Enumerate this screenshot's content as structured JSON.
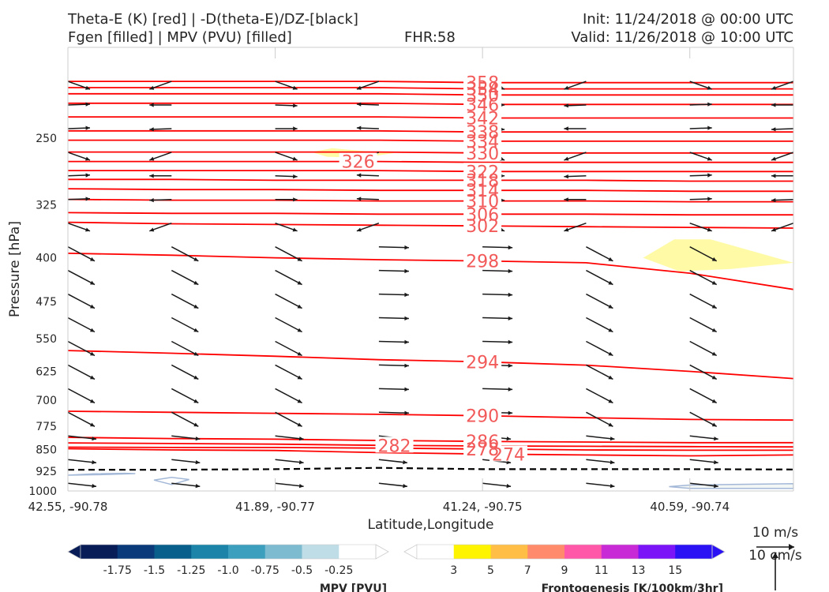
{
  "header": {
    "title_left_1": "Theta-E (K) [red] | -D(theta-E)/DZ-[black]",
    "title_left_2": "Fgen [filled] | MPV (PVU) [filled]",
    "fhr": "FHR:58",
    "init": "Init: 11/24/2018 @ 00:00 UTC",
    "valid": "Valid: 11/26/2018 @ 10:00 UTC"
  },
  "chart_data": {
    "type": "cross-section",
    "xlabel": "Latitude,Longitude",
    "ylabel": "Pressure [hPa]",
    "x_ticks": [
      "42.55, -90.78",
      "41.89, -90.77",
      "41.24, -90.75",
      "40.59, -90.74"
    ],
    "y_ticks": [
      250,
      325,
      400,
      475,
      550,
      625,
      700,
      775,
      850,
      925,
      1000
    ],
    "ylim": [
      1000,
      175
    ],
    "y_scale": "log-pressure",
    "theta_e_contours": [
      {
        "label": "274",
        "values": [
          847,
          851,
          853,
          860,
          865,
          868,
          871,
          868
        ]
      },
      {
        "label": "278",
        "values": [
          842,
          843,
          843,
          845,
          848,
          851,
          852,
          852
        ]
      },
      {
        "label": "282",
        "values": [
          828,
          830,
          832,
          836,
          838,
          839,
          840,
          841
        ]
      },
      {
        "label": "286",
        "values": [
          810,
          814,
          816,
          820,
          823,
          825,
          827,
          827
        ]
      },
      {
        "label": "290",
        "values": [
          731,
          734,
          737,
          740,
          744,
          750,
          755,
          757
        ]
      },
      {
        "label": "294",
        "values": [
          576,
          582,
          589,
          597,
          602,
          610,
          625,
          643
        ]
      },
      {
        "label": "298",
        "values": [
          393,
          396,
          400,
          403,
          405,
          408,
          425,
          453
        ]
      },
      {
        "label": "302",
        "values": [
          348,
          350,
          351,
          352,
          353,
          354,
          355,
          356
        ]
      },
      {
        "label": "306",
        "values": [
          335,
          336,
          336,
          337,
          337,
          337,
          338,
          338
        ]
      },
      {
        "label": "310",
        "values": [
          318,
          319,
          319,
          320,
          320,
          320,
          321,
          321
        ]
      },
      {
        "label": "314",
        "values": [
          305,
          306,
          306,
          307,
          307,
          307,
          308,
          308
        ]
      },
      {
        "label": "318",
        "values": [
          294,
          294,
          295,
          295,
          295,
          295,
          296,
          296
        ]
      },
      {
        "label": "322",
        "values": [
          284,
          284,
          284,
          284,
          285,
          285,
          285,
          285
        ]
      },
      {
        "label": "326",
        "values": [
          274,
          274,
          274,
          274,
          275,
          275,
          275,
          275
        ]
      },
      {
        "label": "330",
        "values": [
          264,
          264,
          264,
          264,
          265,
          265,
          265,
          265
        ]
      },
      {
        "label": "334",
        "values": [
          252,
          252,
          252,
          252,
          253,
          253,
          253,
          253
        ]
      },
      {
        "label": "338",
        "values": [
          243,
          243,
          243,
          243,
          244,
          244,
          244,
          244
        ]
      },
      {
        "label": "342",
        "values": [
          230,
          230,
          230,
          230,
          231,
          231,
          231,
          231
        ]
      },
      {
        "label": "346",
        "values": [
          218,
          218,
          218,
          218,
          219,
          219,
          219,
          219
        ]
      },
      {
        "label": "350",
        "values": [
          210,
          210,
          210,
          210,
          211,
          211,
          211,
          211
        ]
      },
      {
        "label": "354",
        "values": [
          205,
          205,
          205,
          205,
          206,
          206,
          206,
          206
        ]
      },
      {
        "label": "358",
        "values": [
          200,
          200,
          200,
          200,
          201,
          201,
          201,
          201
        ]
      }
    ],
    "stability_zero_line": {
      "style": "dashed",
      "color": "#000000",
      "values": [
        920,
        920,
        918,
        913,
        918,
        918,
        918,
        919
      ]
    },
    "fgen_fill": {
      "color": "#fffaa0"
    },
    "mpv_fill": {
      "color": "#bcd8e2"
    },
    "legends": [
      {
        "title": "MPV [PVU]",
        "tick_labels": [
          "-1.75",
          "-1.5",
          "-1.25",
          "-1.0",
          "-0.75",
          "-0.5",
          "-0.25"
        ],
        "colors": [
          "#081d58",
          "#0b3a7a",
          "#085f8c",
          "#1c84a8",
          "#3d9fbe",
          "#7dbbd1",
          "#bfdde6",
          "#ffffff"
        ]
      },
      {
        "title": "Frontogenesis [K/100km/3hr]",
        "tick_labels": [
          "3",
          "5",
          "7",
          "9",
          "11",
          "13",
          "15"
        ],
        "colors": [
          "#ffffff",
          "#fff400",
          "#ffbf46",
          "#ff8a6c",
          "#ff58a8",
          "#c82ad6",
          "#7b14f6",
          "#2a12f4"
        ]
      }
    ],
    "wind_key": {
      "u_label": "10 m/s",
      "w_label": "10 cm/s"
    }
  }
}
